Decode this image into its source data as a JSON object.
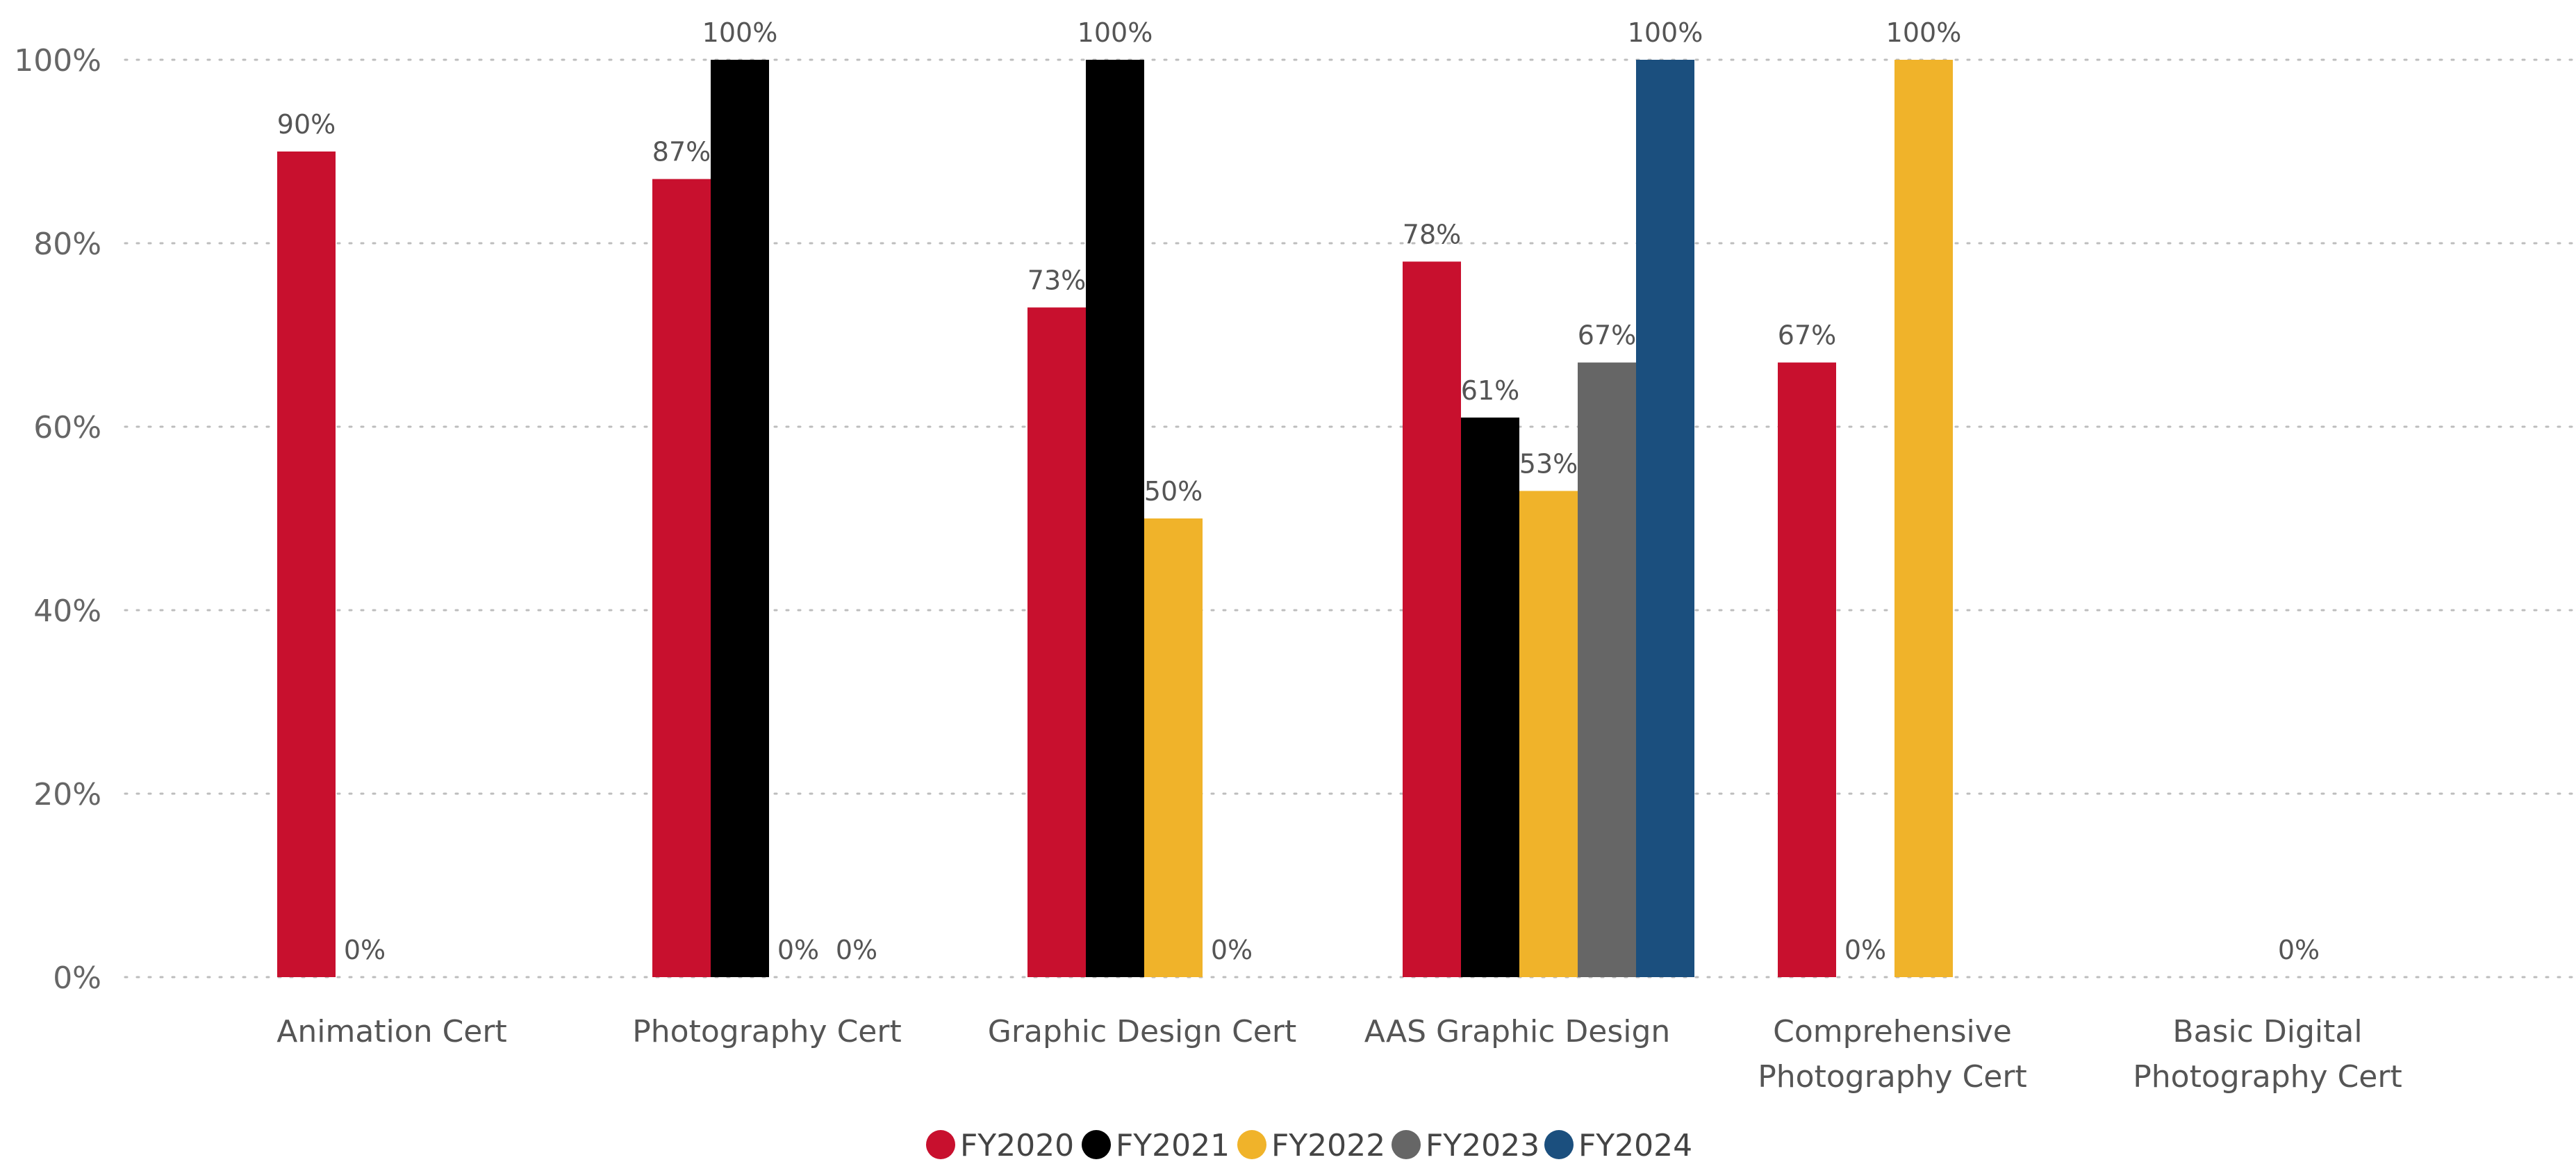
{
  "chart_data": {
    "type": "bar",
    "title": "",
    "xlabel": "",
    "ylabel": "",
    "ylim": [
      0,
      100
    ],
    "y_ticks": [
      "0%",
      "20%",
      "40%",
      "60%",
      "80%",
      "100%"
    ],
    "grid": "horizontal dotted",
    "legend_position": "bottom-center",
    "categories": [
      [
        "Animation Cert"
      ],
      [
        "Photography Cert"
      ],
      [
        "Graphic Design Cert"
      ],
      [
        "AAS Graphic Design"
      ],
      [
        "Comprehensive",
        "Photography Cert"
      ],
      [
        "Basic Digital",
        "Photography Cert"
      ]
    ],
    "series": [
      {
        "name": "FY2020",
        "color": "#C8102E",
        "values": [
          90,
          87,
          73,
          78,
          67,
          null
        ],
        "labels": [
          "90%",
          "87%",
          "73%",
          "78%",
          "67%",
          null
        ]
      },
      {
        "name": "FY2021",
        "color": "#000000",
        "values": [
          0,
          100,
          100,
          61,
          0,
          null
        ],
        "labels": [
          "0%",
          "100%",
          "100%",
          "61%",
          "0%",
          null
        ]
      },
      {
        "name": "FY2022",
        "color": "#F0B32A",
        "values": [
          null,
          0,
          50,
          53,
          100,
          0
        ],
        "labels": [
          null,
          "0%",
          "50%",
          "53%",
          "100%",
          "0%"
        ]
      },
      {
        "name": "FY2023",
        "color": "#666666",
        "values": [
          null,
          0,
          0,
          67,
          null,
          null
        ],
        "labels": [
          null,
          "0%",
          "0%",
          "67%",
          null,
          null
        ]
      },
      {
        "name": "FY2024",
        "color": "#1B4F7E",
        "values": [
          null,
          null,
          null,
          100,
          null,
          null
        ],
        "labels": [
          null,
          null,
          null,
          "100%",
          null,
          null
        ]
      }
    ]
  }
}
